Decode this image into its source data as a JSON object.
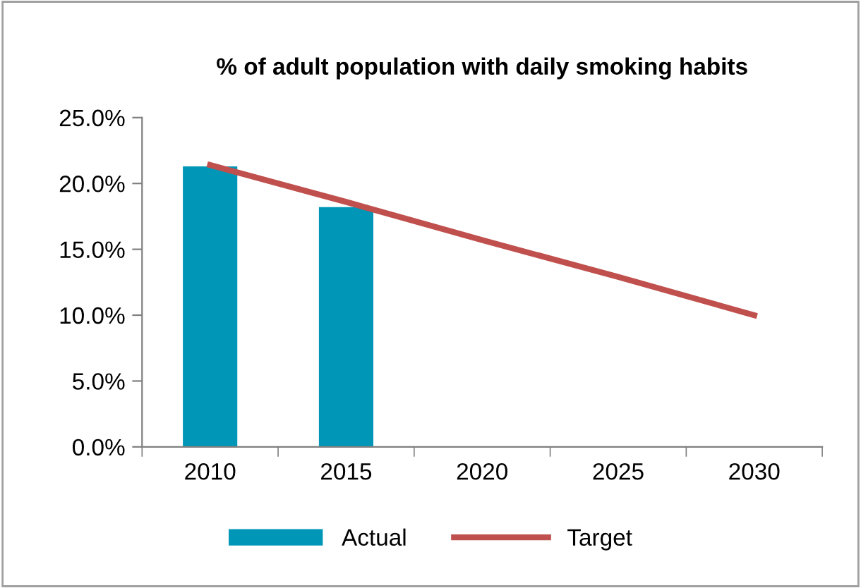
{
  "chart_data": {
    "type": "bar",
    "title": "% of adult population with daily smoking habits",
    "categories": [
      "2010",
      "2015",
      "2020",
      "2025",
      "2030"
    ],
    "series": [
      {
        "name": "Actual",
        "color": "#0096b8",
        "values": [
          21.3,
          18.2,
          null,
          null,
          null
        ]
      },
      {
        "name": "Target",
        "type": "line",
        "color": "#c0504d",
        "values": [
          21.4,
          18.6,
          15.7,
          12.9,
          10.0
        ]
      }
    ],
    "ylim": [
      0,
      25
    ],
    "yticks": [
      {
        "value": 0,
        "label": "0.0%"
      },
      {
        "value": 5,
        "label": "5.0%"
      },
      {
        "value": 10,
        "label": "10.0%"
      },
      {
        "value": 15,
        "label": "15.0%"
      },
      {
        "value": 20,
        "label": "20.0%"
      },
      {
        "value": 25,
        "label": "25.0%"
      }
    ],
    "grid": false,
    "legend": "bottom",
    "marker": "none",
    "line_style": "solid"
  }
}
